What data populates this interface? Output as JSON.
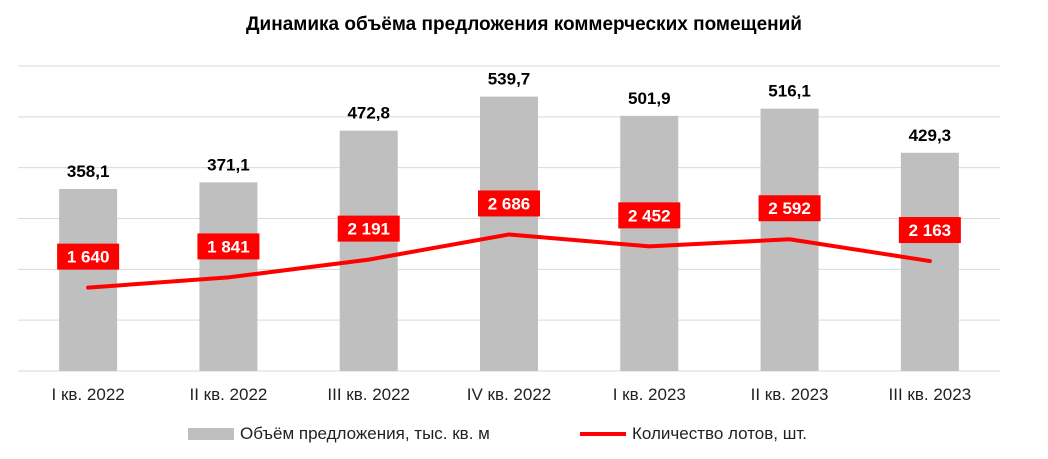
{
  "chart_data": {
    "type": "bar",
    "title": "Динамика объёма предложения коммерческих помещений",
    "categories": [
      "I кв. 2022",
      "II кв. 2022",
      "III кв. 2022",
      "IV кв. 2022",
      "I кв. 2023",
      "II кв. 2023",
      "III кв. 2023"
    ],
    "series": [
      {
        "name": "Объём предложения, тыс. кв. м",
        "type": "bar",
        "values": [
          358.1,
          371.1,
          472.8,
          539.7,
          501.9,
          516.1,
          429.3
        ],
        "labels": [
          "358,1",
          "371,1",
          "472,8",
          "539,7",
          "501,9",
          "516,1",
          "429,3"
        ],
        "color": "#bfbfbf"
      },
      {
        "name": "Количество лотов, шт.",
        "type": "line",
        "values": [
          1640,
          1841,
          2191,
          2686,
          2452,
          2592,
          2163
        ],
        "labels": [
          "1 640",
          "1 841",
          "2 191",
          "2 686",
          "2 452",
          "2 592",
          "2 163"
        ],
        "color": "#ff0000"
      }
    ],
    "ylim": [
      0,
      600
    ],
    "y2lim": [
      0,
      6000
    ],
    "grid": true,
    "legend_position": "bottom"
  }
}
